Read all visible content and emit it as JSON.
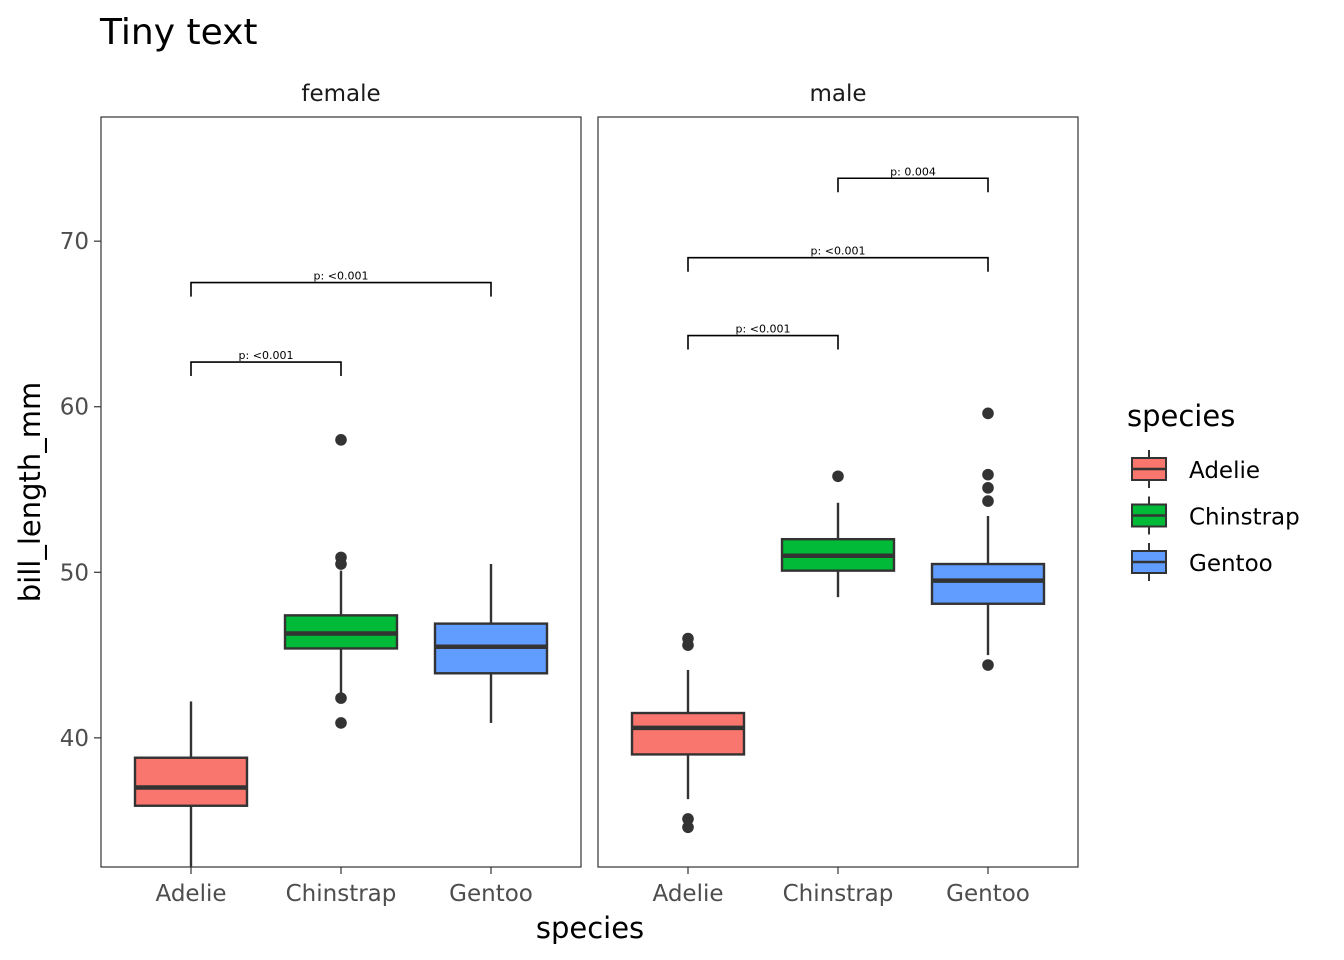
{
  "chart_data": {
    "type": "boxplot",
    "title": "Tiny text",
    "xlabel": "species",
    "ylabel": "bill_length_mm",
    "ylim": [
      32.2,
      77.5
    ],
    "y_ticks": [
      40,
      50,
      60,
      70
    ],
    "grid": false,
    "categories": [
      "Adelie",
      "Chinstrap",
      "Gentoo"
    ],
    "colors": {
      "Adelie": "#F8766D",
      "Chinstrap": "#00BA38",
      "Gentoo": "#619CFF"
    },
    "legend": {
      "title": "species",
      "placement": "right",
      "entries": [
        "Adelie",
        "Chinstrap",
        "Gentoo"
      ]
    },
    "facets": [
      {
        "label": "female",
        "boxes": [
          {
            "category": "Adelie",
            "whisker_low": 32.1,
            "q1": 35.9,
            "median": 37.0,
            "q3": 38.8,
            "whisker_high": 42.2,
            "outliers": []
          },
          {
            "category": "Chinstrap",
            "whisker_low": 42.5,
            "q1": 45.4,
            "median": 46.3,
            "q3": 47.4,
            "whisker_high": 50.1,
            "outliers": [
              40.9,
              42.4,
              50.5,
              50.9,
              58.0
            ]
          },
          {
            "category": "Gentoo",
            "whisker_low": 40.9,
            "q1": 43.9,
            "median": 45.5,
            "q3": 46.9,
            "whisker_high": 50.5,
            "outliers": []
          }
        ],
        "comparisons": [
          {
            "from": "Adelie",
            "to": "Chinstrap",
            "y": 62.7,
            "label": "p: <0.001"
          },
          {
            "from": "Adelie",
            "to": "Gentoo",
            "y": 67.5,
            "label": "p: <0.001"
          }
        ]
      },
      {
        "label": "male",
        "boxes": [
          {
            "category": "Adelie",
            "whisker_low": 36.3,
            "q1": 39.0,
            "median": 40.6,
            "q3": 41.5,
            "whisker_high": 44.1,
            "outliers": [
              34.6,
              35.1,
              45.6,
              46.0
            ]
          },
          {
            "category": "Chinstrap",
            "whisker_low": 48.5,
            "q1": 50.1,
            "median": 51.0,
            "q3": 52.0,
            "whisker_high": 54.2,
            "outliers": [
              55.8
            ]
          },
          {
            "category": "Gentoo",
            "whisker_low": 45.0,
            "q1": 48.1,
            "median": 49.5,
            "q3": 50.5,
            "whisker_high": 53.4,
            "outliers": [
              44.4,
              54.3,
              55.1,
              55.9,
              59.6
            ]
          }
        ],
        "comparisons": [
          {
            "from": "Adelie",
            "to": "Chinstrap",
            "y": 64.3,
            "label": "p: <0.001"
          },
          {
            "from": "Adelie",
            "to": "Gentoo",
            "y": 69.0,
            "label": "p: <0.001"
          },
          {
            "from": "Chinstrap",
            "to": "Gentoo",
            "y": 73.8,
            "label": "p: 0.004"
          }
        ]
      }
    ]
  }
}
